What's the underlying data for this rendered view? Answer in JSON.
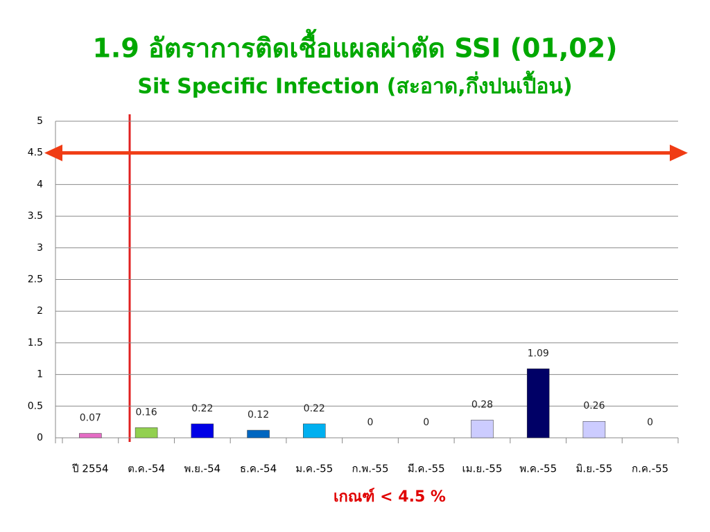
{
  "chart_data": {
    "type": "bar",
    "title": "1.9 อัตราการติดเชื้อแผลผ่าตัด SSI (01,02)",
    "subtitle": "Sit Specific Infection (สะอาด,กึ่งปนเปื้อน)",
    "annotation": "เกณฑ์ < 4.5 %",
    "threshold": 4.5,
    "categories": [
      "ปี 2554",
      "ต.ค.-54",
      "พ.ย.-54",
      "ธ.ค.-54",
      "ม.ค.-55",
      "ก.พ.-55",
      "มี.ค.-55",
      "เม.ย.-55",
      "พ.ค.-55",
      "มิ.ย.-55",
      "ก.ค.-55"
    ],
    "values": [
      0.07,
      0.16,
      0.22,
      0.12,
      0.22,
      0,
      0,
      0.28,
      1.09,
      0.26,
      0
    ],
    "colors": [
      "#e46cc4",
      "#92d050",
      "#0000e6",
      "#0066c0",
      "#00b0f0",
      null,
      null,
      "#ccccff",
      "#000066",
      "#ccccff",
      null
    ],
    "ylim": [
      0,
      5
    ],
    "yticks": [
      0,
      0.5,
      1,
      1.5,
      2,
      2.5,
      3,
      3.5,
      4,
      4.5,
      5
    ],
    "grid": true
  }
}
